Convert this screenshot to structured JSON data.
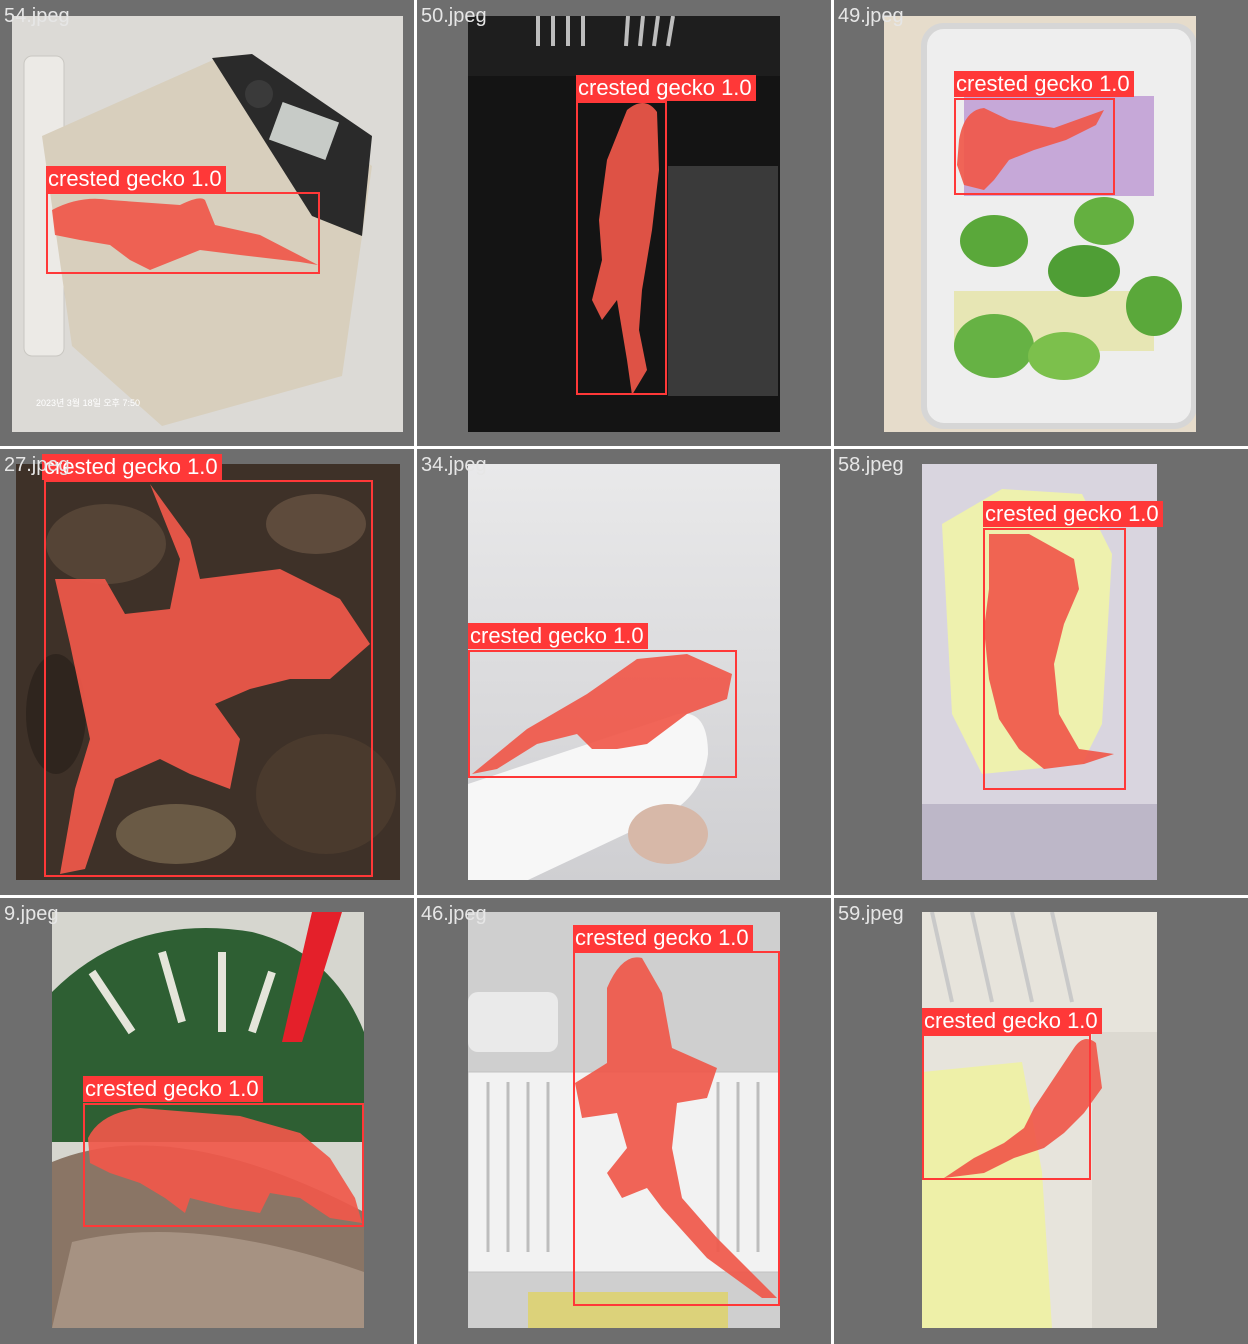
{
  "colors": {
    "cell_background": "#6e6e6e",
    "box": "#ff3838",
    "mask": "#f0584a"
  },
  "label_template": "crested gecko 1.0",
  "tiles": [
    {
      "file": "54.jpeg",
      "label": "crested gecko 1.0",
      "photo_text": "2023년 3월 18일 오후 7:50"
    },
    {
      "file": "50.jpeg",
      "label": "crested gecko 1.0"
    },
    {
      "file": "49.jpeg",
      "label": "crested gecko 1.0"
    },
    {
      "file": "27.jpeg",
      "label": "crested gecko 1.0"
    },
    {
      "file": "34.jpeg",
      "label": "crested gecko 1.0"
    },
    {
      "file": "58.jpeg",
      "label": "crested gecko 1.0"
    },
    {
      "file": "9.jpeg",
      "label": "crested gecko 1.0"
    },
    {
      "file": "46.jpeg",
      "label": "crested gecko 1.0"
    },
    {
      "file": "59.jpeg",
      "label": "crested gecko 1.0"
    }
  ]
}
